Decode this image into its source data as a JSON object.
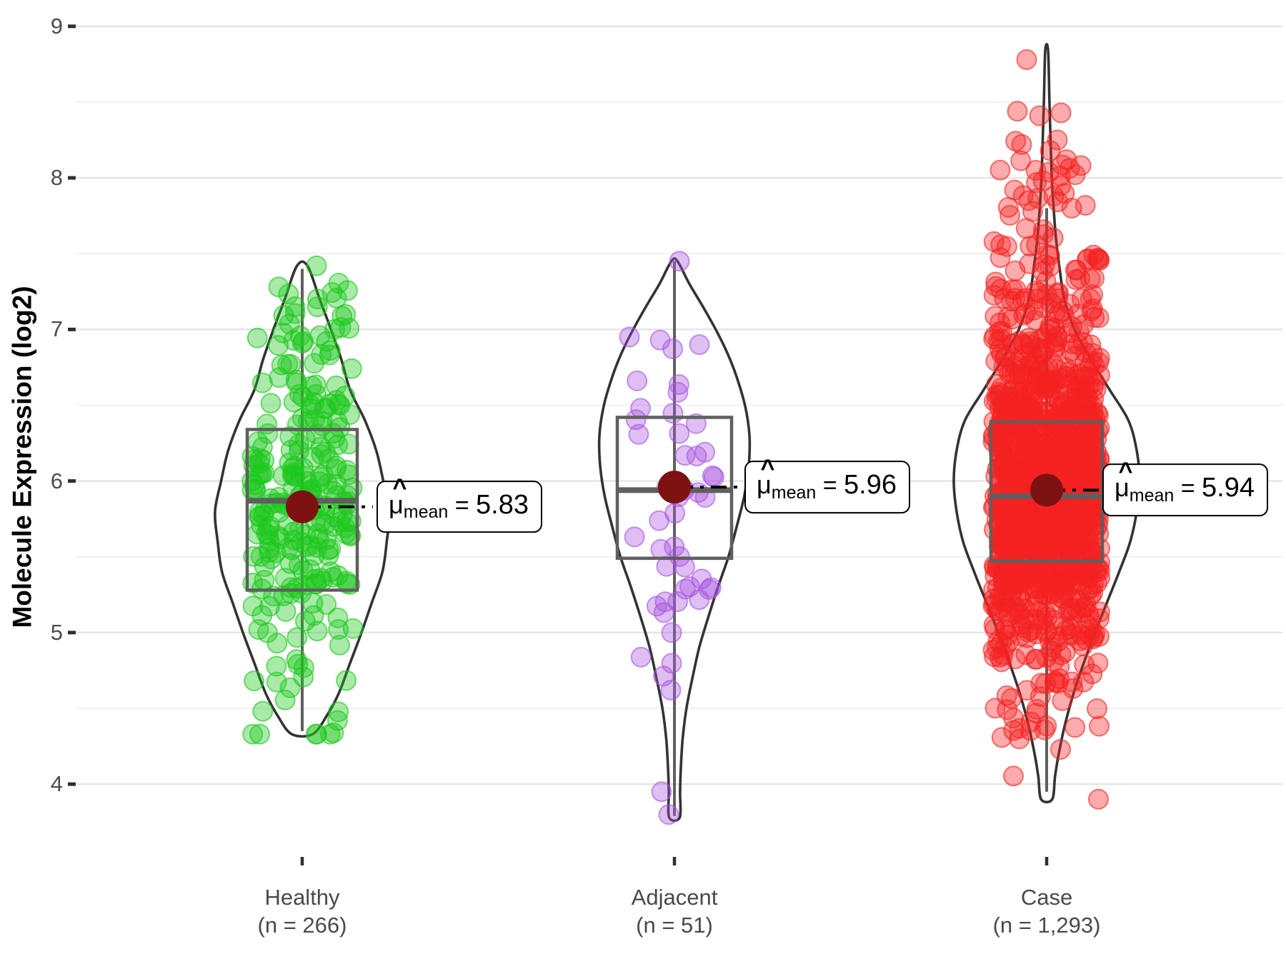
{
  "chart_data": {
    "type": "violin+box+jitter",
    "title": "",
    "ylabel": "Molecule Expression (log2)",
    "ylim": [
      3.52,
      9.15
    ],
    "yticks": [
      9,
      8,
      7,
      6,
      5,
      4
    ],
    "minor_gridlines": [
      8.5,
      7.5,
      6.5,
      5.5,
      4.5
    ],
    "grid": {
      "major_color": "#E4E4E4",
      "minor_color": "#F0F0F0"
    },
    "annotation": {
      "mu": "μ",
      "hat": "^",
      "sub": "mean",
      "eq": " = "
    },
    "colors": {
      "mean_point": "#7E1212",
      "box_stroke": "#5F5F5F",
      "violin_outline": "#333333",
      "axis_text": "#4D4D4D",
      "connector": "#000000",
      "tick_mark": "#2F2F2F"
    },
    "groups": [
      {
        "label": "Healthy",
        "n_label": "(n = 266)",
        "n": 266,
        "color": "#1EC81E",
        "mean": 5.83,
        "mean_label": "5.83",
        "median": 5.87,
        "q1": 5.28,
        "q3": 6.34,
        "whisker_low": 4.35,
        "whisker_high": 7.4,
        "min": 4.33,
        "max": 7.42,
        "violin_profile": [
          [
            7.42,
            0.06
          ],
          [
            7.2,
            0.2
          ],
          [
            7.0,
            0.33
          ],
          [
            6.8,
            0.45
          ],
          [
            6.6,
            0.55
          ],
          [
            6.4,
            0.72
          ],
          [
            6.2,
            0.85
          ],
          [
            6.0,
            0.93
          ],
          [
            5.8,
            1.0
          ],
          [
            5.6,
            0.97
          ],
          [
            5.4,
            0.92
          ],
          [
            5.2,
            0.8
          ],
          [
            5.0,
            0.68
          ],
          [
            4.8,
            0.55
          ],
          [
            4.6,
            0.42
          ],
          [
            4.45,
            0.28
          ],
          [
            4.33,
            0.12
          ]
        ],
        "notable_points": [
          [
            20,
            7.42
          ],
          [
            -33,
            7.28
          ],
          [
            -10,
            7.15
          ]
        ],
        "distribution_estimate": [
          {
            "w": 0.93,
            "mu": 5.8,
            "sd": 0.55
          },
          {
            "w": 0.07,
            "mu": 6.9,
            "sd": 0.28
          }
        ]
      },
      {
        "label": "Adjacent",
        "n_label": "(n = 51)",
        "n": 51,
        "color": "#A855E0",
        "mean": 5.96,
        "mean_label": "5.96",
        "median": 5.94,
        "q1": 5.49,
        "q3": 6.42,
        "whisker_low": 3.79,
        "whisker_high": 7.45,
        "min": 3.78,
        "max": 7.45,
        "violin_profile": [
          [
            7.45,
            0.04
          ],
          [
            7.3,
            0.2
          ],
          [
            7.15,
            0.38
          ],
          [
            7.0,
            0.55
          ],
          [
            6.85,
            0.7
          ],
          [
            6.7,
            0.82
          ],
          [
            6.5,
            0.94
          ],
          [
            6.3,
            1.0
          ],
          [
            6.1,
            0.99
          ],
          [
            5.9,
            0.93
          ],
          [
            5.7,
            0.83
          ],
          [
            5.5,
            0.72
          ],
          [
            5.3,
            0.58
          ],
          [
            5.1,
            0.45
          ],
          [
            4.9,
            0.33
          ],
          [
            4.7,
            0.24
          ],
          [
            4.5,
            0.16
          ],
          [
            4.3,
            0.11
          ],
          [
            4.1,
            0.085
          ],
          [
            3.95,
            0.075
          ],
          [
            3.78,
            0.07
          ]
        ],
        "notable_points": [
          [
            7,
            7.45
          ],
          [
            -63,
            6.95
          ],
          [
            -20,
            6.93
          ],
          [
            35,
            6.9
          ],
          [
            -5,
            4.62
          ],
          [
            -18,
            3.95
          ],
          [
            -8,
            3.8
          ]
        ],
        "distribution_estimate": [
          {
            "w": 0.8,
            "mu": 6.05,
            "sd": 0.5
          },
          {
            "w": 0.14,
            "mu": 5.25,
            "sd": 0.3
          },
          {
            "w": 0.06,
            "mu": 4.8,
            "sd": 0.22
          }
        ]
      },
      {
        "label": "Case",
        "n_label": "(n = 1,293)",
        "n": 1293,
        "color": "#F52121",
        "mean": 5.94,
        "mean_label": "5.94",
        "median": 5.9,
        "q1": 5.47,
        "q3": 6.39,
        "whisker_low": 3.95,
        "whisker_high": 7.8,
        "min": 3.9,
        "max": 8.84,
        "violin_profile": [
          [
            8.84,
            0.015
          ],
          [
            8.5,
            0.03
          ],
          [
            8.2,
            0.045
          ],
          [
            8.0,
            0.055
          ],
          [
            7.8,
            0.075
          ],
          [
            7.6,
            0.1
          ],
          [
            7.4,
            0.14
          ],
          [
            7.2,
            0.19
          ],
          [
            7.0,
            0.3
          ],
          [
            6.8,
            0.48
          ],
          [
            6.6,
            0.68
          ],
          [
            6.4,
            0.88
          ],
          [
            6.2,
            0.97
          ],
          [
            6.0,
            1.0
          ],
          [
            5.8,
            0.97
          ],
          [
            5.6,
            0.9
          ],
          [
            5.4,
            0.78
          ],
          [
            5.2,
            0.65
          ],
          [
            5.0,
            0.52
          ],
          [
            4.8,
            0.4
          ],
          [
            4.6,
            0.29
          ],
          [
            4.4,
            0.2
          ],
          [
            4.2,
            0.13
          ],
          [
            4.05,
            0.09
          ],
          [
            3.9,
            0.06
          ]
        ],
        "notable_points": [
          [
            -28,
            8.78
          ],
          [
            -41,
            8.44
          ],
          [
            -10,
            8.41
          ],
          [
            15,
            8.25
          ],
          [
            -35,
            8.22
          ],
          [
            5,
            8.18
          ],
          [
            28,
            8.12
          ],
          [
            -15,
            8.05
          ],
          [
            40,
            8.02
          ],
          [
            -5,
            7.98
          ],
          [
            20,
            7.95
          ],
          [
            -45,
            7.92
          ],
          [
            10,
            7.88
          ],
          [
            -25,
            7.85
          ],
          [
            35,
            7.8
          ]
        ],
        "distribution_estimate": [
          {
            "w": 0.945,
            "mu": 5.93,
            "sd": 0.58
          },
          {
            "w": 0.028,
            "mu": 7.25,
            "sd": 0.33
          },
          {
            "w": 0.015,
            "mu": 7.95,
            "sd": 0.3
          },
          {
            "w": 0.012,
            "mu": 4.35,
            "sd": 0.22
          }
        ]
      }
    ]
  }
}
